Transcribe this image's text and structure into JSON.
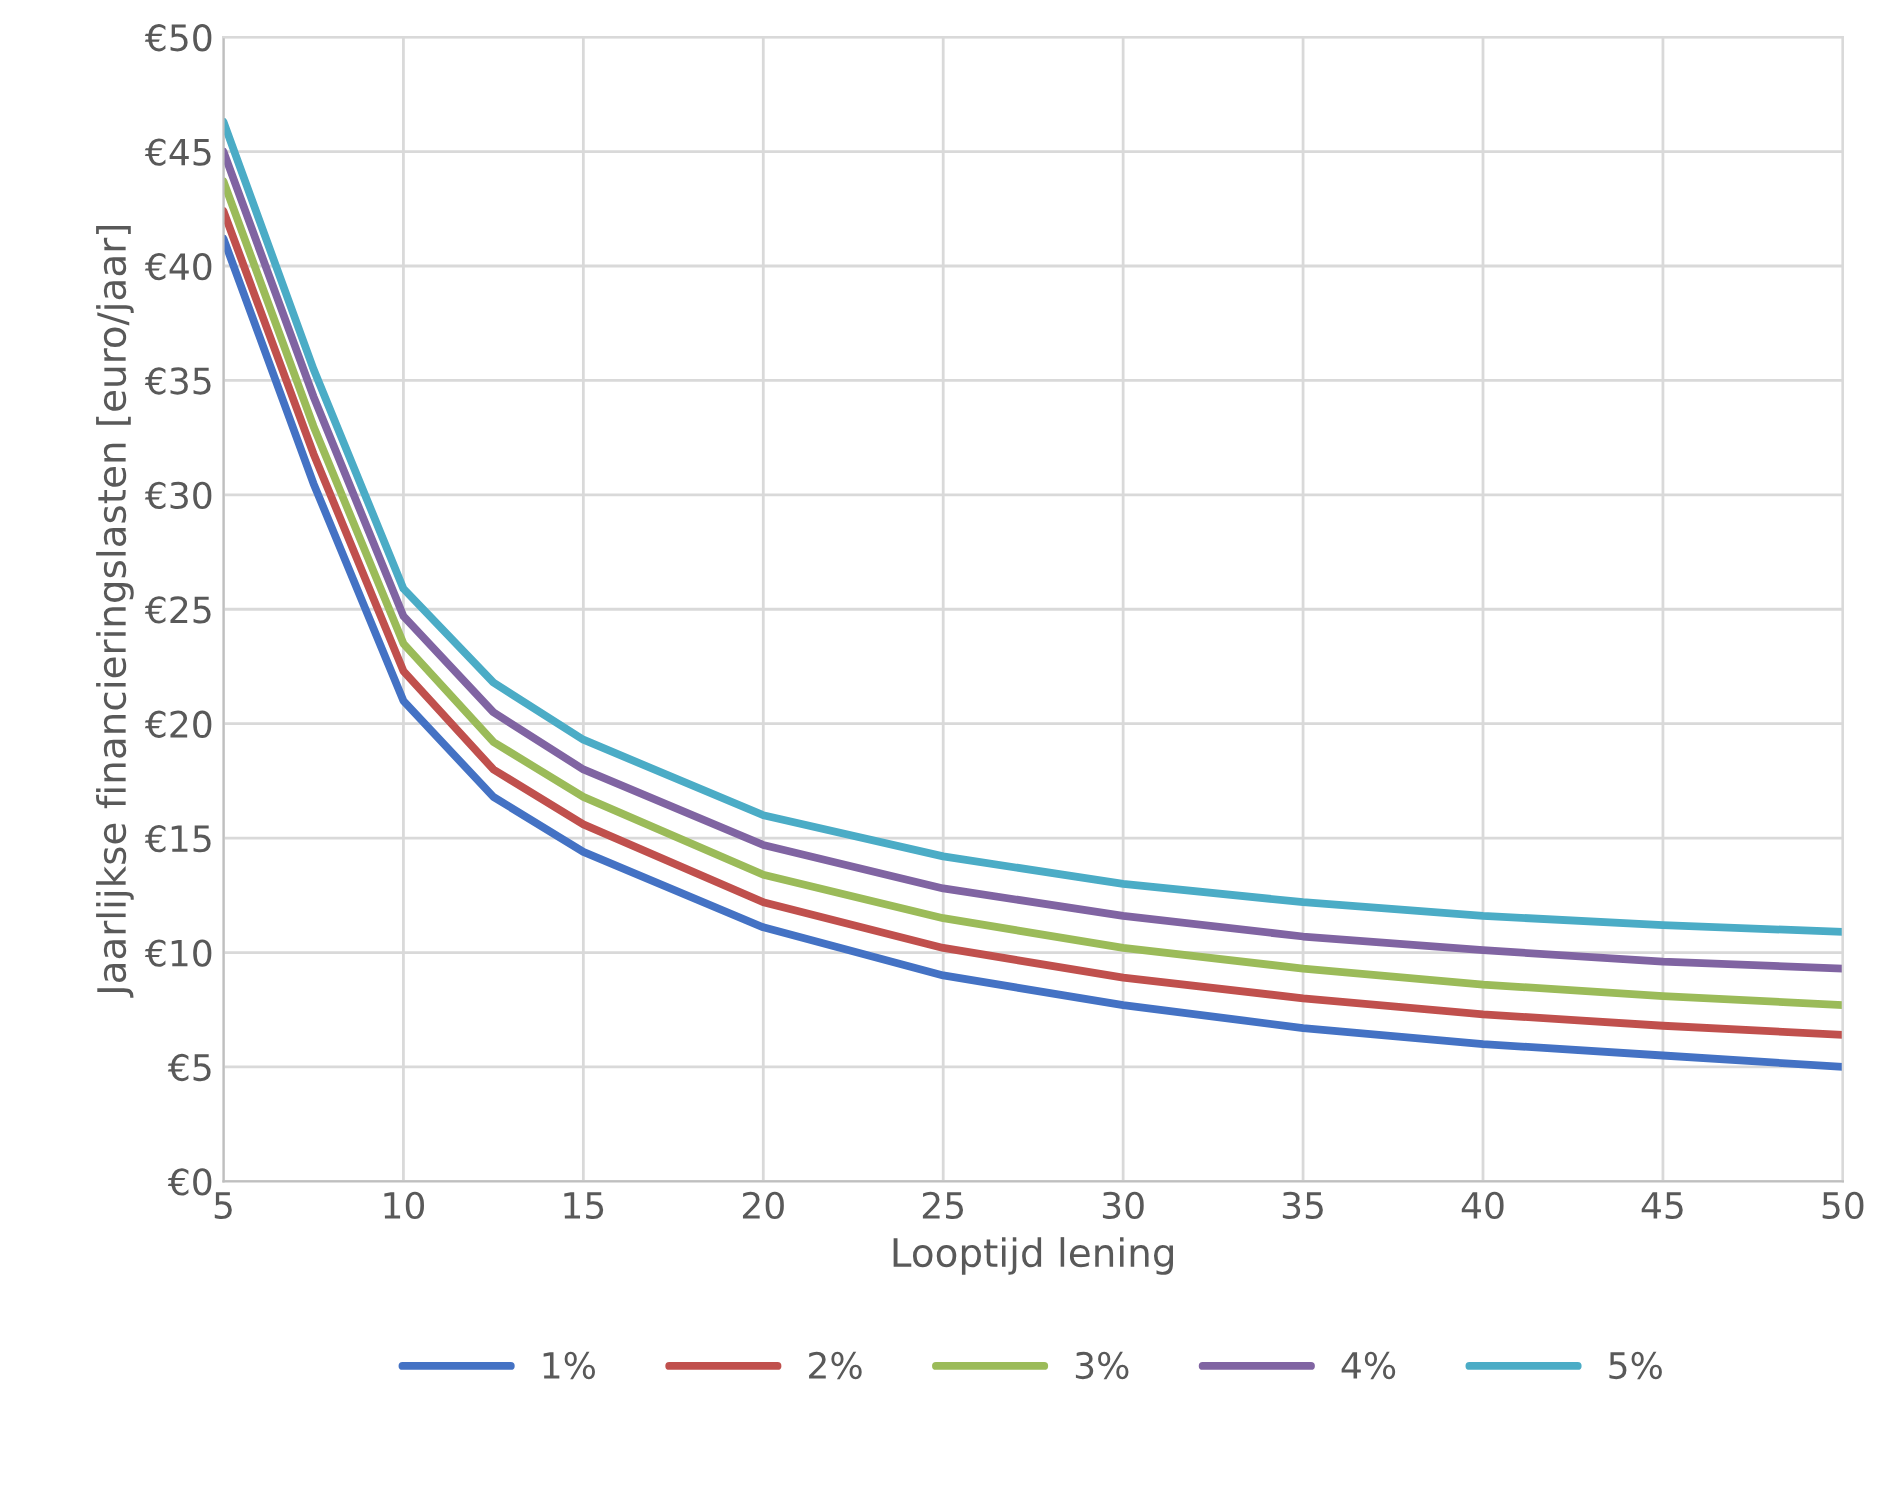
{
  "chart_data": {
    "type": "line",
    "xlabel": "Looptijd lening",
    "ylabel": "Jaarlijkse financieringslasten [euro/jaar]",
    "x": [
      5,
      7.5,
      10,
      12.5,
      15,
      20,
      25,
      30,
      35,
      40,
      45,
      50
    ],
    "series": [
      {
        "name": "1%",
        "color": "#4472c4",
        "values": [
          41.2,
          30.5,
          21.0,
          16.8,
          14.4,
          11.1,
          9.0,
          7.7,
          6.7,
          6.0,
          5.5,
          5.0
        ]
      },
      {
        "name": "2%",
        "color": "#c0504d",
        "values": [
          42.4,
          31.8,
          22.3,
          18.0,
          15.6,
          12.2,
          10.2,
          8.9,
          8.0,
          7.3,
          6.8,
          6.4
        ]
      },
      {
        "name": "3%",
        "color": "#9bbb59",
        "values": [
          43.7,
          33.0,
          23.5,
          19.2,
          16.8,
          13.4,
          11.5,
          10.2,
          9.3,
          8.6,
          8.1,
          7.7
        ]
      },
      {
        "name": "4%",
        "color": "#8064a2",
        "values": [
          45.0,
          34.3,
          24.7,
          20.5,
          18.0,
          14.7,
          12.8,
          11.6,
          10.7,
          10.1,
          9.6,
          9.3
        ]
      },
      {
        "name": "5%",
        "color": "#4bacc6",
        "values": [
          46.3,
          35.5,
          25.9,
          21.8,
          19.3,
          16.0,
          14.2,
          13.0,
          12.2,
          11.6,
          11.2,
          10.9
        ]
      }
    ],
    "xlim": [
      5,
      50
    ],
    "xticks": [
      5,
      10,
      15,
      20,
      25,
      30,
      35,
      40,
      45,
      50
    ],
    "ylim": [
      0,
      50
    ],
    "yticks": [
      {
        "value": 0,
        "label": "€0"
      },
      {
        "value": 5,
        "label": "€5"
      },
      {
        "value": 10,
        "label": "€10"
      },
      {
        "value": 15,
        "label": "€15"
      },
      {
        "value": 20,
        "label": "€20"
      },
      {
        "value": 25,
        "label": "€25"
      },
      {
        "value": 30,
        "label": "€30"
      },
      {
        "value": 35,
        "label": "€35"
      },
      {
        "value": 40,
        "label": "€40"
      },
      {
        "value": 45,
        "label": "€45"
      },
      {
        "value": 50,
        "label": "€50"
      }
    ],
    "grid": true,
    "legend": "bottom",
    "marker": "none",
    "line_style": "solid"
  }
}
